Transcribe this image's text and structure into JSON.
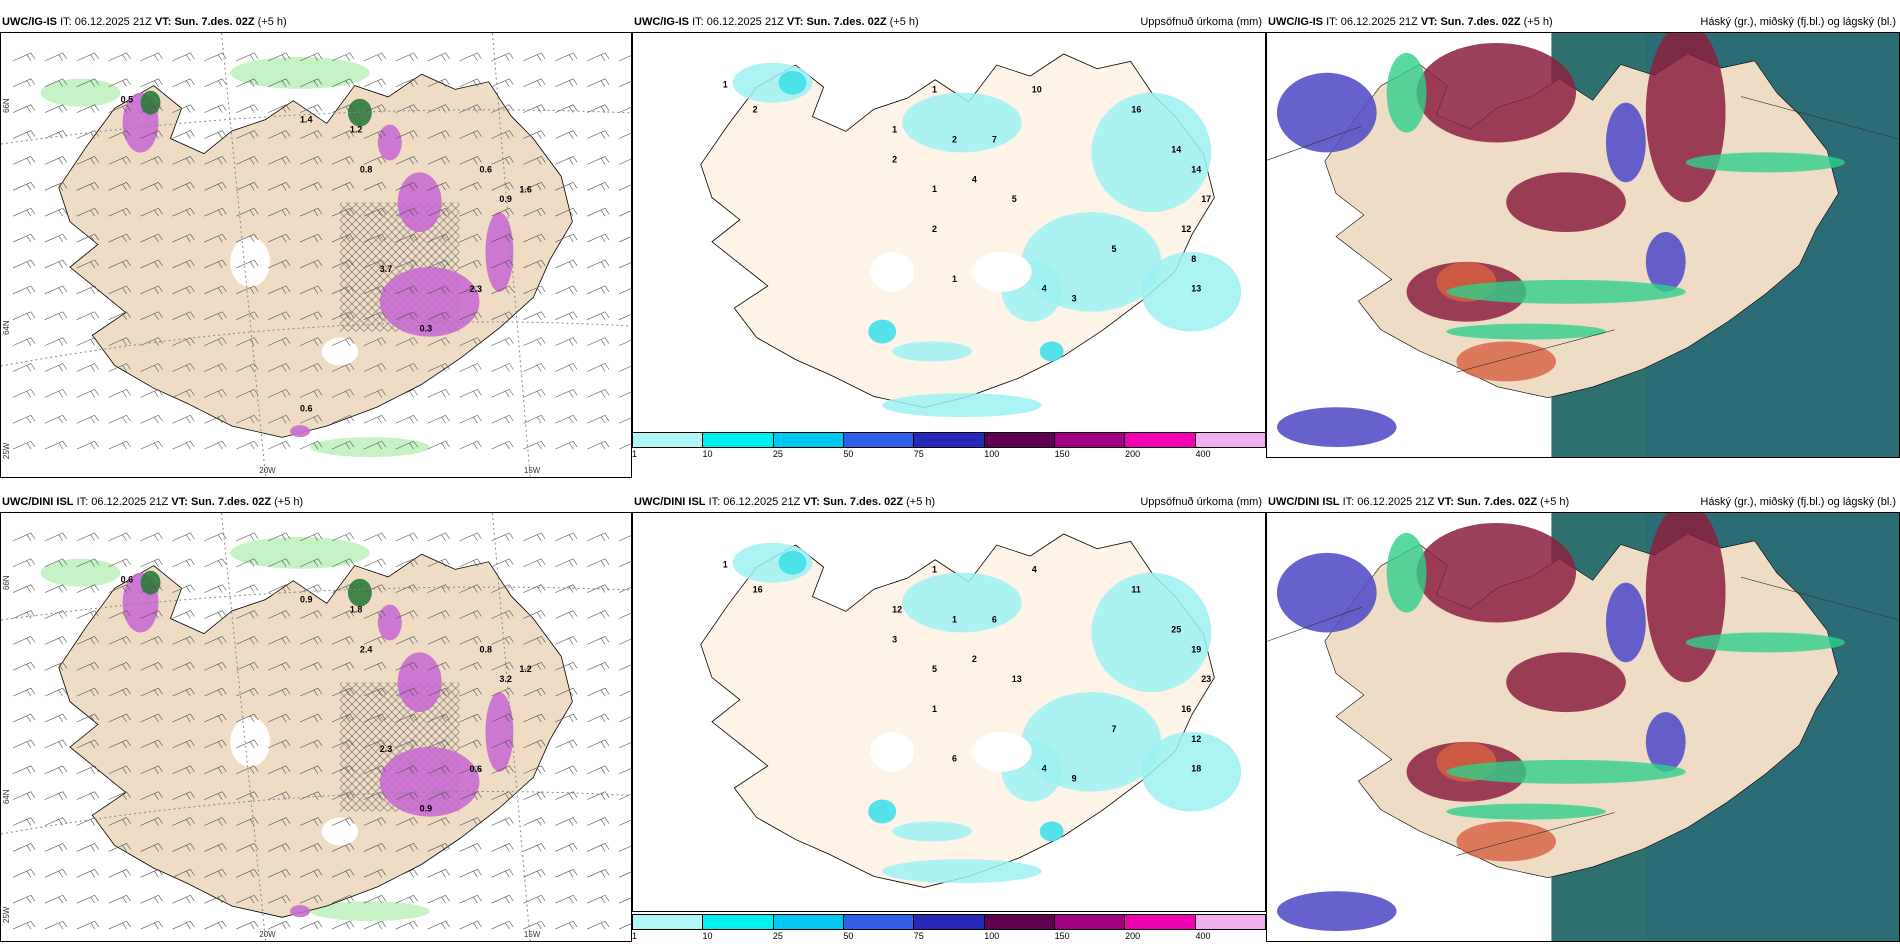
{
  "colors": {
    "land": "#efdcc5",
    "landInner": "#fdf3e7",
    "sea": "#ffffff",
    "green": "#b8f0b8",
    "darkgreen": "#2c7a3a",
    "magenta": "#c86cd0",
    "cyan": "#9ef1f3",
    "highCloudRed": "#8b2040",
    "midCloudBlue": "#5550c8",
    "lowCloudTeal": "#2f7070",
    "greenEdge": "#30d08a"
  },
  "rows": [
    {
      "model": "UWC/IG-IS",
      "it_label": "IT:",
      "it_value": "06.12.2025 21Z",
      "vt_label": "VT:",
      "vt_value": "Sun. 7.des. 02Z",
      "lead": "(+5 h)"
    },
    {
      "model": "UWC/DINI ISL",
      "it_label": "IT:",
      "it_value": "06.12.2025 21Z",
      "vt_label": "VT:",
      "vt_value": "Sun. 7.des. 02Z",
      "lead": "(+5 h)"
    }
  ],
  "precip_title": "Uppsöfnuð úrkoma (mm)",
  "cloud_title": "Háský (gr.), miðský (fj.bl.) og lágský (bl.)",
  "axis_labels": {
    "lat66": "66N",
    "lat64": "64N",
    "lon25": "25W",
    "lon20": "20W",
    "lon15": "15W"
  },
  "colorbar": {
    "ticks": [
      "1",
      "10",
      "25",
      "50",
      "75",
      "100",
      "150",
      "200",
      "400"
    ],
    "colors": [
      "#b0f8f8",
      "#00f0f0",
      "#00c8f0",
      "#3060e8",
      "#2828b8",
      "#600050",
      "#a00080",
      "#f000b0",
      "#f0b0f0"
    ]
  },
  "wind_values": {
    "top": [
      "0.5",
      "1.4",
      "1.2",
      "0.8",
      "0.6",
      "0.9",
      "1.6",
      "0.3",
      "2.3",
      "3.7",
      "0.6"
    ],
    "bottom": [
      "0.6",
      "0.9",
      "1.8",
      "2.4",
      "0.8",
      "3.2",
      "1.2",
      "0.9",
      "0.6",
      "2.3"
    ]
  },
  "precip_values": {
    "top": [
      "1",
      "2",
      "1",
      "1",
      "2",
      "7",
      "10",
      "1",
      "4",
      "5",
      "16",
      "14",
      "14",
      "17",
      "12",
      "8",
      "13",
      "5",
      "3",
      "4",
      "1",
      "2",
      "2"
    ],
    "bottom": [
      "1",
      "16",
      "12",
      "1",
      "1",
      "6",
      "4",
      "5",
      "2",
      "13",
      "11",
      "25",
      "19",
      "23",
      "16",
      "12",
      "18",
      "7",
      "9",
      "4",
      "6",
      "3",
      "1"
    ]
  }
}
